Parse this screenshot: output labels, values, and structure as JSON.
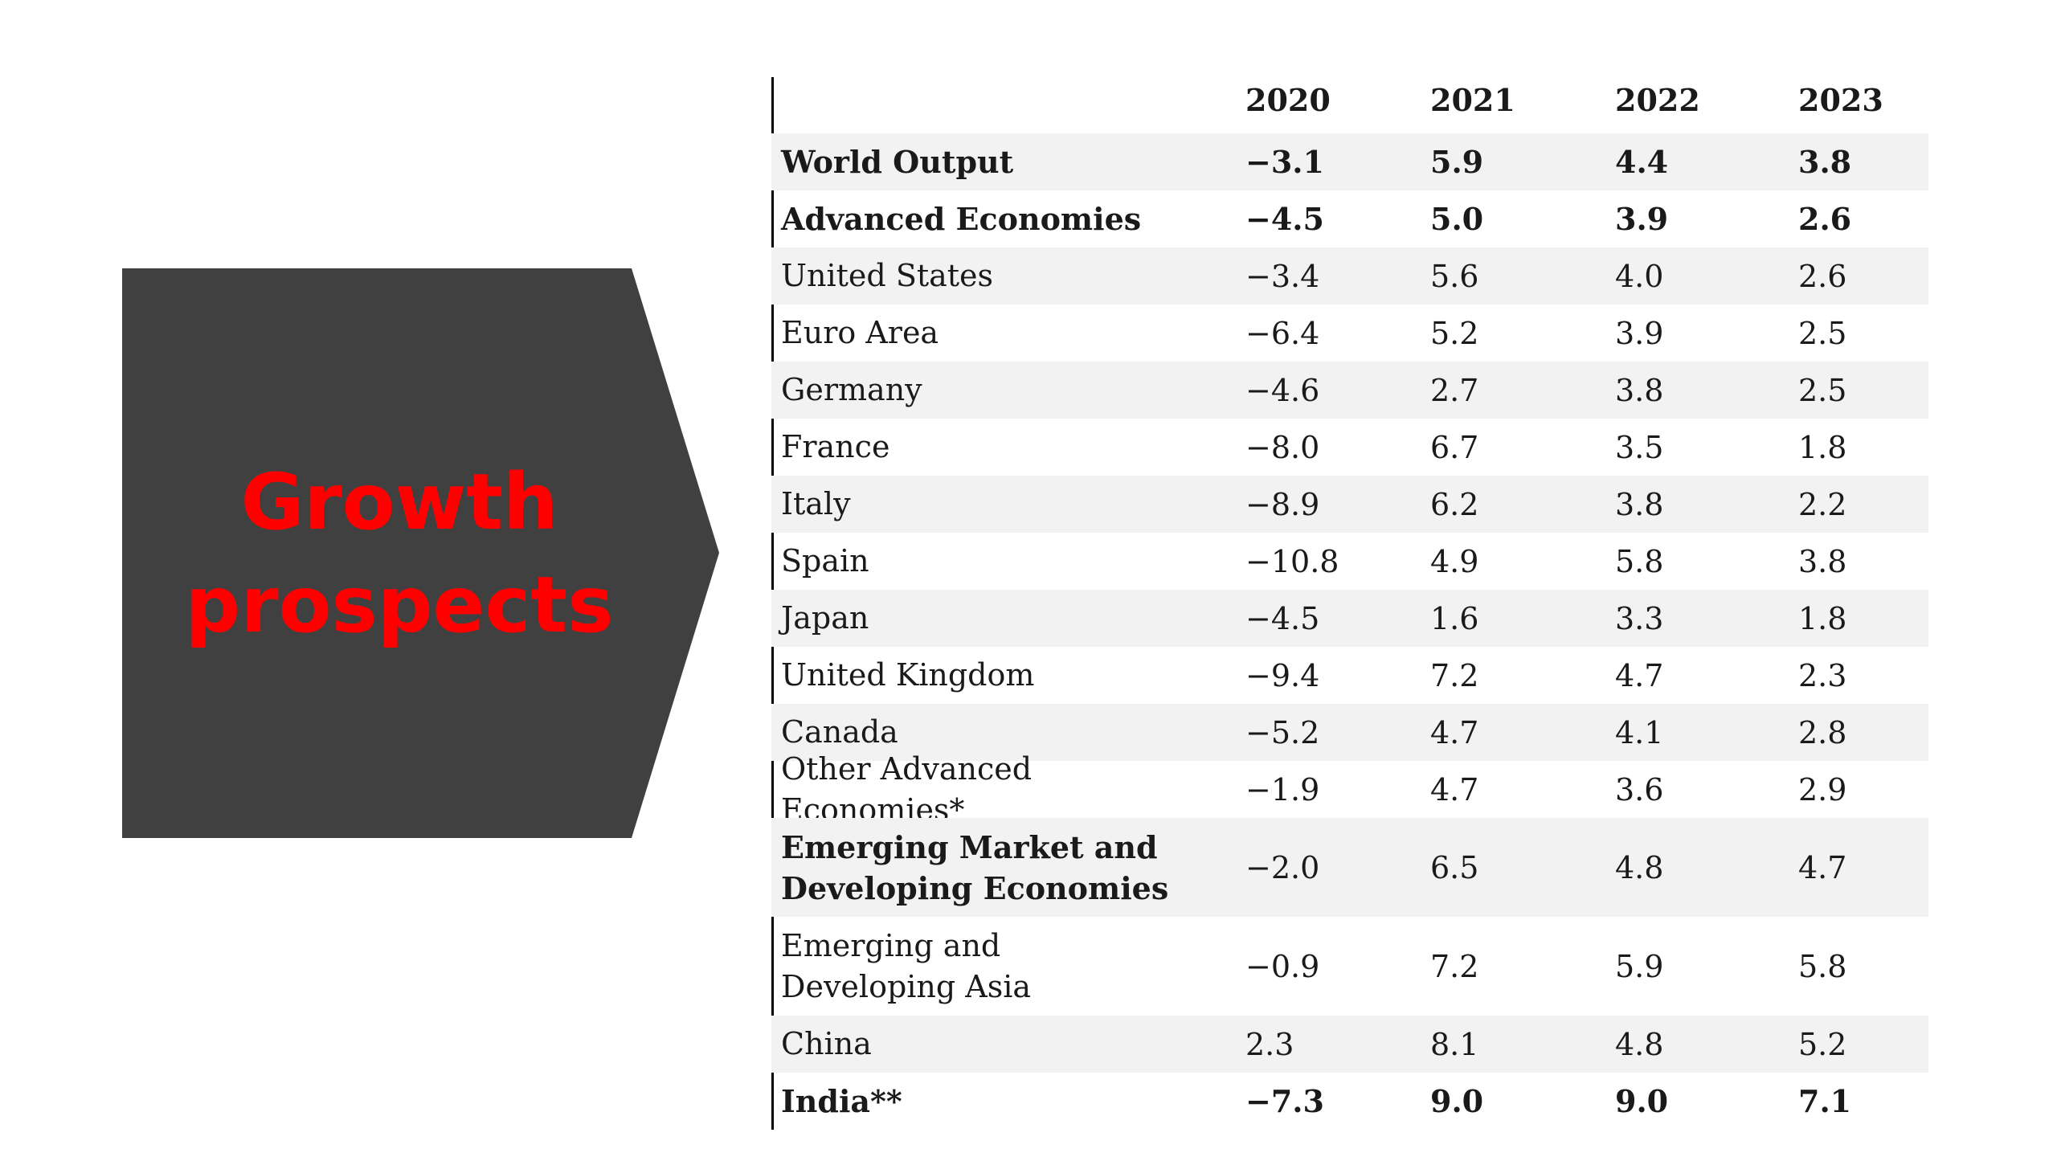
{
  "title_lines": [
    "Growth",
    "prospects"
  ],
  "table": {
    "years": [
      "2020",
      "2021",
      "2022",
      "2023"
    ],
    "rows": [
      {
        "name": "World Output",
        "values": [
          "−3.1",
          "5.9",
          "4.4",
          "3.8"
        ]
      },
      {
        "name": "Advanced Economies",
        "values": [
          "−4.5",
          "5.0",
          "3.9",
          "2.6"
        ]
      },
      {
        "name": "United States",
        "values": [
          "−3.4",
          "5.6",
          "4.0",
          "2.6"
        ]
      },
      {
        "name": "Euro Area",
        "values": [
          "−6.4",
          "5.2",
          "3.9",
          "2.5"
        ]
      },
      {
        "name": "Germany",
        "values": [
          "−4.6",
          "2.7",
          "3.8",
          "2.5"
        ]
      },
      {
        "name": "France",
        "values": [
          "−8.0",
          "6.7",
          "3.5",
          "1.8"
        ]
      },
      {
        "name": "Italy",
        "values": [
          "−8.9",
          "6.2",
          "3.8",
          "2.2"
        ]
      },
      {
        "name": "Spain",
        "values": [
          "−10.8",
          "4.9",
          "5.8",
          "3.8"
        ]
      },
      {
        "name": "Japan",
        "values": [
          "−4.5",
          "1.6",
          "3.3",
          "1.8"
        ]
      },
      {
        "name": "United Kingdom",
        "values": [
          "−9.4",
          "7.2",
          "4.7",
          "2.3"
        ]
      },
      {
        "name": "Canada",
        "values": [
          "−5.2",
          "4.7",
          "4.1",
          "2.8"
        ]
      },
      {
        "name": "Other Advanced Economies*",
        "values": [
          "−1.9",
          "4.7",
          "3.6",
          "2.9"
        ]
      },
      {
        "name": "Emerging Market and Developing Economies",
        "values": [
          "−2.0",
          "6.5",
          "4.8",
          "4.7"
        ]
      },
      {
        "name": "Emerging and Developing Asia",
        "values": [
          "−0.9",
          "7.2",
          "5.9",
          "5.8"
        ]
      },
      {
        "name": "China",
        "values": [
          "2.3",
          "8.1",
          "4.8",
          "5.2"
        ]
      },
      {
        "name": "India**",
        "values": [
          "−7.3",
          "9.0",
          "9.0",
          "7.1"
        ]
      }
    ]
  },
  "colors": {
    "shape_fill": "#404040",
    "title_text": "#ff0000",
    "row_shade": "#f2f2f2"
  }
}
